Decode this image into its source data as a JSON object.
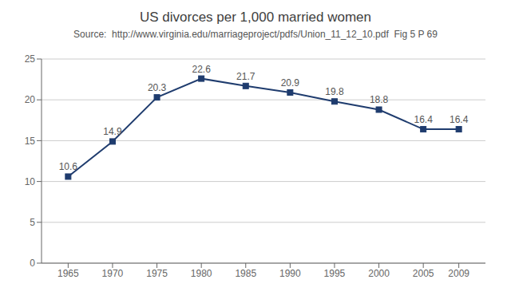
{
  "chart_data": {
    "type": "line",
    "title": "US divorces per 1,000 married women",
    "subtitle": "Source:  http://www.virginia.edu/marriageproject/pdfs/Union_11_12_10.pdf  Fig 5 P 69",
    "x": [
      1965,
      1970,
      1975,
      1980,
      1985,
      1990,
      1995,
      2000,
      2005,
      2009
    ],
    "values": [
      10.6,
      14.9,
      20.3,
      22.6,
      21.7,
      20.9,
      19.8,
      18.8,
      16.4,
      16.4
    ],
    "color": "#1F3C6E",
    "marker": "square",
    "xlim": [
      1962,
      2012
    ],
    "xticks": [
      1965,
      1970,
      1975,
      1980,
      1985,
      1990,
      1995,
      2000,
      2005,
      2009
    ],
    "ylim": [
      0,
      25
    ],
    "yticks": [
      0,
      5,
      10,
      15,
      20,
      25
    ],
    "grid": "y",
    "data_labels": true
  }
}
